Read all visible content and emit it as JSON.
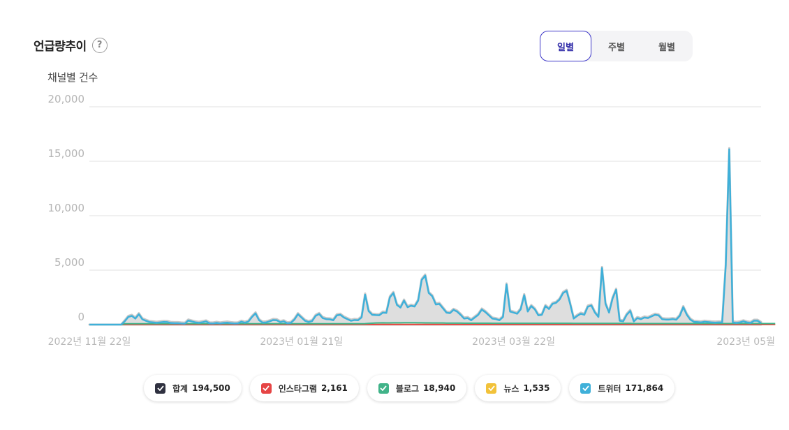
{
  "header": {
    "title": "언급량추이",
    "help_icon": "?",
    "tabs": [
      {
        "label": "일별",
        "active": true
      },
      {
        "label": "주별",
        "active": false
      },
      {
        "label": "월별",
        "active": false
      }
    ]
  },
  "y_axis_title": "채널별 건수",
  "legend": [
    {
      "label": "합계",
      "value": "194,500",
      "color": "#2f3140"
    },
    {
      "label": "인스타그램",
      "value": "2,161",
      "color": "#e64545"
    },
    {
      "label": "블로그",
      "value": "18,940",
      "color": "#41b389"
    },
    {
      "label": "뉴스",
      "value": "1,535",
      "color": "#f2c23a"
    },
    {
      "label": "트위터",
      "value": "171,864",
      "color": "#3fb0d9"
    }
  ],
  "chart_data": {
    "type": "area",
    "ylim": [
      0,
      20000
    ],
    "yticks": [
      0,
      5000,
      10000,
      15000,
      20000
    ],
    "ytick_labels": [
      "0",
      "5,000",
      "10,000",
      "15,000",
      "20,000"
    ],
    "xtick_labels": [
      {
        "label": "2022년 11월 22일",
        "index": 0
      },
      {
        "label": "2023년 01월 21일",
        "index": 60
      },
      {
        "label": "2023년 03월 22일",
        "index": 120
      },
      {
        "label": "2023년 05월",
        "index": 180
      }
    ],
    "grid": true,
    "series": [
      {
        "name": "합계",
        "color": "#2f3140",
        "values": [
          0,
          0,
          0,
          0,
          0,
          0,
          0,
          0,
          0,
          0,
          400,
          800,
          900,
          650,
          1050,
          580,
          450,
          330,
          300,
          260,
          300,
          340,
          330,
          250,
          230,
          230,
          200,
          180,
          470,
          380,
          300,
          260,
          320,
          390,
          210,
          200,
          260,
          200,
          250,
          280,
          230,
          200,
          210,
          360,
          270,
          380,
          800,
          1130,
          500,
          280,
          300,
          400,
          520,
          500,
          320,
          400,
          210,
          260,
          560,
          1050,
          750,
          450,
          330,
          420,
          900,
          1070,
          700,
          600,
          580,
          500,
          950,
          1000,
          750,
          600,
          450,
          520,
          500,
          760,
          2850,
          1330,
          1000,
          970,
          960,
          1200,
          1170,
          2600,
          3000,
          1900,
          1660,
          2300,
          1700,
          1830,
          1760,
          2300,
          4200,
          4600,
          3000,
          2700,
          1950,
          2000,
          1600,
          1200,
          1150,
          1450,
          1300,
          1000,
          650,
          700,
          500,
          750,
          1000,
          1480,
          1250,
          950,
          650,
          600,
          500,
          800,
          3780,
          1300,
          1200,
          1100,
          1500,
          2800,
          1300,
          1800,
          1500,
          950,
          1000,
          1800,
          1530,
          2000,
          2100,
          2400,
          3000,
          3200,
          2000,
          650,
          900,
          1100,
          1000,
          1750,
          1850,
          1200,
          800,
          5300,
          2000,
          1200,
          2500,
          3300,
          450,
          400,
          1000,
          1350,
          380,
          700,
          600,
          750,
          700,
          850,
          1000,
          950,
          600,
          560,
          560,
          600,
          550,
          900,
          1700,
          1000,
          550,
          350,
          330,
          300,
          360,
          330,
          300,
          280,
          300,
          300,
          5500,
          16200,
          300,
          250,
          300,
          400,
          300,
          250,
          450,
          450,
          250
        ]
      },
      {
        "name": "트위터",
        "color": "#3fb0d9",
        "values": [
          0,
          0,
          0,
          0,
          0,
          0,
          0,
          0,
          0,
          0,
          300,
          700,
          800,
          550,
          950,
          480,
          350,
          230,
          200,
          160,
          200,
          240,
          230,
          150,
          130,
          130,
          100,
          80,
          370,
          280,
          200,
          160,
          220,
          290,
          110,
          100,
          160,
          100,
          150,
          180,
          130,
          100,
          110,
          260,
          170,
          280,
          700,
          1030,
          400,
          180,
          200,
          300,
          420,
          400,
          220,
          300,
          110,
          160,
          460,
          950,
          650,
          350,
          230,
          320,
          800,
          970,
          600,
          500,
          480,
          400,
          850,
          900,
          650,
          500,
          350,
          420,
          400,
          660,
          2750,
          1230,
          900,
          870,
          860,
          1100,
          1070,
          2500,
          2900,
          1800,
          1560,
          2200,
          1600,
          1730,
          1660,
          2200,
          4100,
          4500,
          2900,
          2600,
          1850,
          1900,
          1500,
          1100,
          1050,
          1350,
          1200,
          900,
          550,
          600,
          400,
          650,
          900,
          1380,
          1150,
          850,
          550,
          500,
          400,
          700,
          3680,
          1200,
          1100,
          1000,
          1400,
          2700,
          1200,
          1700,
          1400,
          850,
          900,
          1700,
          1430,
          1900,
          2000,
          2300,
          2900,
          3100,
          1900,
          550,
          800,
          1000,
          900,
          1650,
          1750,
          1100,
          700,
          5200,
          1900,
          1100,
          2400,
          3200,
          350,
          300,
          900,
          1250,
          280,
          600,
          500,
          650,
          600,
          750,
          900,
          850,
          500,
          460,
          460,
          500,
          450,
          800,
          1600,
          900,
          450,
          250,
          230,
          200,
          260,
          230,
          200,
          180,
          200,
          200,
          5400,
          16100,
          200,
          150,
          200,
          300,
          200,
          150,
          350,
          350,
          150
        ]
      },
      {
        "name": "블로그",
        "color": "#41b389",
        "values": [
          0,
          0,
          0,
          0,
          0,
          0,
          0,
          0,
          0,
          0,
          80,
          80,
          80,
          80,
          80,
          80,
          80,
          80,
          80,
          80,
          80,
          80,
          80,
          80,
          80,
          80,
          80,
          80,
          80,
          80,
          80,
          80,
          80,
          80,
          80,
          80,
          80,
          80,
          80,
          80,
          80,
          80,
          80,
          80,
          80,
          80,
          80,
          80,
          80,
          80,
          80,
          80,
          80,
          80,
          80,
          80,
          80,
          80,
          80,
          80,
          80,
          80,
          80,
          80,
          80,
          80,
          80,
          80,
          80,
          80,
          80,
          80,
          80,
          80,
          80,
          80,
          80,
          80,
          90,
          110,
          130,
          150,
          160,
          170,
          160,
          160,
          170,
          170,
          170,
          180,
          180,
          180,
          180,
          170,
          170,
          160,
          160,
          150,
          150,
          150,
          150,
          140,
          140,
          140,
          140,
          140,
          130,
          130,
          130,
          130,
          130,
          130,
          130,
          130,
          120,
          120,
          120,
          120,
          120,
          120,
          120,
          120,
          120,
          120,
          120,
          120,
          120,
          120,
          120,
          120,
          120,
          120,
          120,
          120,
          120,
          120,
          120,
          110,
          110,
          110,
          110,
          110,
          110,
          110,
          110,
          110,
          110,
          110,
          110,
          110,
          110,
          110,
          110,
          110,
          100,
          100,
          100,
          100,
          100,
          100,
          100,
          100,
          100,
          100,
          100,
          100,
          100,
          100,
          100,
          100,
          100,
          100,
          100,
          100,
          100,
          100,
          100,
          100,
          100,
          100,
          100,
          100,
          100,
          100,
          100,
          100,
          100,
          100,
          100,
          100,
          100,
          100,
          100,
          100,
          100
        ]
      },
      {
        "name": "뉴스",
        "color": "#f2c23a",
        "values": [
          0,
          0,
          0,
          0,
          0,
          0,
          0,
          0,
          0,
          0,
          10,
          10,
          10,
          10,
          10,
          10,
          10,
          10,
          10,
          10,
          10,
          10,
          10,
          10,
          10,
          10,
          10,
          10,
          10,
          10,
          10,
          10,
          10,
          10,
          10,
          10,
          10,
          10,
          10,
          10,
          10,
          10,
          10,
          10,
          10,
          10,
          10,
          10,
          10,
          10,
          10,
          10,
          10,
          10,
          10,
          10,
          10,
          10,
          10,
          10,
          10,
          10,
          10,
          10,
          10,
          10,
          10,
          10,
          10,
          10,
          10,
          10,
          10,
          10,
          10,
          10,
          10,
          10,
          10,
          10,
          10,
          10,
          10,
          10,
          10,
          10,
          10,
          10,
          10,
          10,
          10,
          10,
          10,
          10,
          10,
          10,
          10,
          10,
          10,
          10,
          10,
          10,
          10,
          10,
          10,
          10,
          10,
          10,
          10,
          10,
          10,
          10,
          10,
          10,
          10,
          10,
          10,
          10,
          10,
          10,
          10,
          10,
          10,
          10,
          10,
          10,
          10,
          10,
          10,
          10,
          10,
          10,
          10,
          10,
          10,
          10,
          10,
          10,
          10,
          10,
          10,
          10,
          10,
          10,
          10,
          10,
          10,
          10,
          10,
          10,
          10,
          10,
          10,
          10,
          10,
          10,
          10,
          10,
          10,
          10,
          10,
          10,
          10,
          10,
          10,
          10,
          10,
          10,
          10,
          10,
          10,
          10,
          10,
          10,
          10,
          10,
          10,
          10,
          10,
          10,
          10,
          10,
          10,
          10,
          10,
          10,
          10,
          10,
          10,
          10,
          10,
          10,
          10,
          10,
          10
        ]
      },
      {
        "name": "인스타그램",
        "color": "#e64545",
        "values": [
          0,
          0,
          0,
          0,
          0,
          0,
          0,
          0,
          0,
          0,
          10,
          10,
          10,
          10,
          10,
          10,
          10,
          10,
          10,
          10,
          10,
          10,
          10,
          10,
          10,
          10,
          10,
          10,
          10,
          10,
          10,
          10,
          10,
          10,
          10,
          10,
          10,
          10,
          10,
          10,
          10,
          10,
          10,
          10,
          10,
          10,
          10,
          10,
          10,
          10,
          10,
          10,
          10,
          10,
          10,
          10,
          10,
          10,
          10,
          10,
          10,
          10,
          10,
          10,
          10,
          10,
          10,
          10,
          10,
          10,
          10,
          10,
          10,
          10,
          10,
          10,
          10,
          10,
          10,
          10,
          10,
          10,
          10,
          10,
          10,
          10,
          10,
          10,
          10,
          10,
          10,
          10,
          10,
          10,
          10,
          10,
          10,
          10,
          10,
          10,
          10,
          10,
          10,
          10,
          10,
          10,
          10,
          10,
          10,
          10,
          10,
          10,
          10,
          10,
          10,
          10,
          10,
          10,
          10,
          10,
          10,
          10,
          10,
          10,
          10,
          10,
          10,
          10,
          10,
          10,
          10,
          10,
          10,
          10,
          10,
          10,
          10,
          10,
          10,
          10,
          10,
          10,
          10,
          10,
          10,
          10,
          10,
          10,
          10,
          10,
          10,
          10,
          10,
          10,
          10,
          10,
          10,
          10,
          10,
          10,
          10,
          10,
          10,
          10,
          10,
          10,
          10,
          10,
          10,
          10,
          10,
          10,
          10,
          10,
          10,
          10,
          10,
          10,
          10,
          10,
          10,
          10,
          10,
          10,
          10,
          10,
          10,
          10,
          10,
          10,
          10,
          10,
          10,
          10,
          10
        ]
      }
    ]
  }
}
